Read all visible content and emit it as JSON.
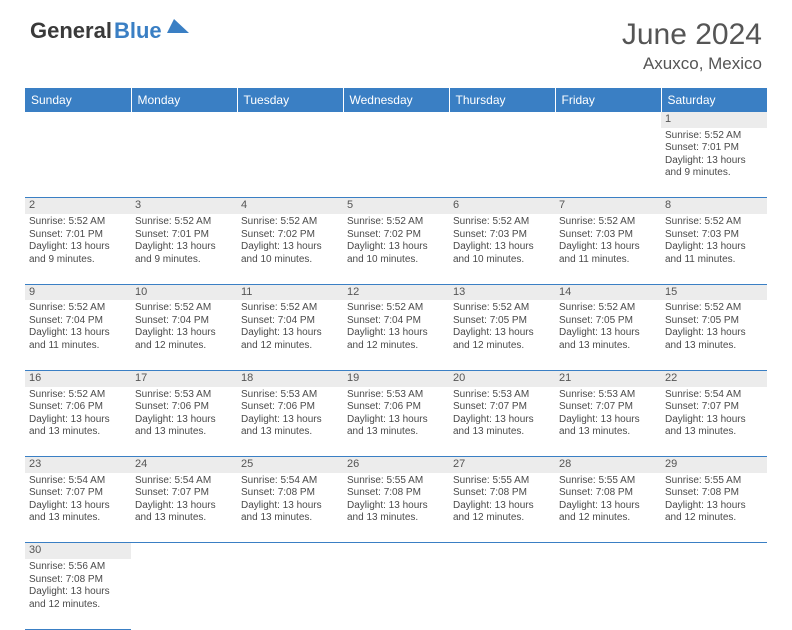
{
  "logo": {
    "text1": "General",
    "text2": "Blue",
    "arrow_color": "#3a7fc4"
  },
  "title": "June 2024",
  "location": "Axuxco, Mexico",
  "colors": {
    "header_bg": "#3a7fc4",
    "daynum_bg": "#ececec",
    "text": "#4a4a4a"
  },
  "day_headers": [
    "Sunday",
    "Monday",
    "Tuesday",
    "Wednesday",
    "Thursday",
    "Friday",
    "Saturday"
  ],
  "weeks": [
    [
      null,
      null,
      null,
      null,
      null,
      null,
      {
        "n": "1",
        "sr": "Sunrise: 5:52 AM",
        "ss": "Sunset: 7:01 PM",
        "dl": "Daylight: 13 hours and 9 minutes."
      }
    ],
    [
      {
        "n": "2",
        "sr": "Sunrise: 5:52 AM",
        "ss": "Sunset: 7:01 PM",
        "dl": "Daylight: 13 hours and 9 minutes."
      },
      {
        "n": "3",
        "sr": "Sunrise: 5:52 AM",
        "ss": "Sunset: 7:01 PM",
        "dl": "Daylight: 13 hours and 9 minutes."
      },
      {
        "n": "4",
        "sr": "Sunrise: 5:52 AM",
        "ss": "Sunset: 7:02 PM",
        "dl": "Daylight: 13 hours and 10 minutes."
      },
      {
        "n": "5",
        "sr": "Sunrise: 5:52 AM",
        "ss": "Sunset: 7:02 PM",
        "dl": "Daylight: 13 hours and 10 minutes."
      },
      {
        "n": "6",
        "sr": "Sunrise: 5:52 AM",
        "ss": "Sunset: 7:03 PM",
        "dl": "Daylight: 13 hours and 10 minutes."
      },
      {
        "n": "7",
        "sr": "Sunrise: 5:52 AM",
        "ss": "Sunset: 7:03 PM",
        "dl": "Daylight: 13 hours and 11 minutes."
      },
      {
        "n": "8",
        "sr": "Sunrise: 5:52 AM",
        "ss": "Sunset: 7:03 PM",
        "dl": "Daylight: 13 hours and 11 minutes."
      }
    ],
    [
      {
        "n": "9",
        "sr": "Sunrise: 5:52 AM",
        "ss": "Sunset: 7:04 PM",
        "dl": "Daylight: 13 hours and 11 minutes."
      },
      {
        "n": "10",
        "sr": "Sunrise: 5:52 AM",
        "ss": "Sunset: 7:04 PM",
        "dl": "Daylight: 13 hours and 12 minutes."
      },
      {
        "n": "11",
        "sr": "Sunrise: 5:52 AM",
        "ss": "Sunset: 7:04 PM",
        "dl": "Daylight: 13 hours and 12 minutes."
      },
      {
        "n": "12",
        "sr": "Sunrise: 5:52 AM",
        "ss": "Sunset: 7:04 PM",
        "dl": "Daylight: 13 hours and 12 minutes."
      },
      {
        "n": "13",
        "sr": "Sunrise: 5:52 AM",
        "ss": "Sunset: 7:05 PM",
        "dl": "Daylight: 13 hours and 12 minutes."
      },
      {
        "n": "14",
        "sr": "Sunrise: 5:52 AM",
        "ss": "Sunset: 7:05 PM",
        "dl": "Daylight: 13 hours and 13 minutes."
      },
      {
        "n": "15",
        "sr": "Sunrise: 5:52 AM",
        "ss": "Sunset: 7:05 PM",
        "dl": "Daylight: 13 hours and 13 minutes."
      }
    ],
    [
      {
        "n": "16",
        "sr": "Sunrise: 5:52 AM",
        "ss": "Sunset: 7:06 PM",
        "dl": "Daylight: 13 hours and 13 minutes."
      },
      {
        "n": "17",
        "sr": "Sunrise: 5:53 AM",
        "ss": "Sunset: 7:06 PM",
        "dl": "Daylight: 13 hours and 13 minutes."
      },
      {
        "n": "18",
        "sr": "Sunrise: 5:53 AM",
        "ss": "Sunset: 7:06 PM",
        "dl": "Daylight: 13 hours and 13 minutes."
      },
      {
        "n": "19",
        "sr": "Sunrise: 5:53 AM",
        "ss": "Sunset: 7:06 PM",
        "dl": "Daylight: 13 hours and 13 minutes."
      },
      {
        "n": "20",
        "sr": "Sunrise: 5:53 AM",
        "ss": "Sunset: 7:07 PM",
        "dl": "Daylight: 13 hours and 13 minutes."
      },
      {
        "n": "21",
        "sr": "Sunrise: 5:53 AM",
        "ss": "Sunset: 7:07 PM",
        "dl": "Daylight: 13 hours and 13 minutes."
      },
      {
        "n": "22",
        "sr": "Sunrise: 5:54 AM",
        "ss": "Sunset: 7:07 PM",
        "dl": "Daylight: 13 hours and 13 minutes."
      }
    ],
    [
      {
        "n": "23",
        "sr": "Sunrise: 5:54 AM",
        "ss": "Sunset: 7:07 PM",
        "dl": "Daylight: 13 hours and 13 minutes."
      },
      {
        "n": "24",
        "sr": "Sunrise: 5:54 AM",
        "ss": "Sunset: 7:07 PM",
        "dl": "Daylight: 13 hours and 13 minutes."
      },
      {
        "n": "25",
        "sr": "Sunrise: 5:54 AM",
        "ss": "Sunset: 7:08 PM",
        "dl": "Daylight: 13 hours and 13 minutes."
      },
      {
        "n": "26",
        "sr": "Sunrise: 5:55 AM",
        "ss": "Sunset: 7:08 PM",
        "dl": "Daylight: 13 hours and 13 minutes."
      },
      {
        "n": "27",
        "sr": "Sunrise: 5:55 AM",
        "ss": "Sunset: 7:08 PM",
        "dl": "Daylight: 13 hours and 12 minutes."
      },
      {
        "n": "28",
        "sr": "Sunrise: 5:55 AM",
        "ss": "Sunset: 7:08 PM",
        "dl": "Daylight: 13 hours and 12 minutes."
      },
      {
        "n": "29",
        "sr": "Sunrise: 5:55 AM",
        "ss": "Sunset: 7:08 PM",
        "dl": "Daylight: 13 hours and 12 minutes."
      }
    ],
    [
      {
        "n": "30",
        "sr": "Sunrise: 5:56 AM",
        "ss": "Sunset: 7:08 PM",
        "dl": "Daylight: 13 hours and 12 minutes."
      },
      null,
      null,
      null,
      null,
      null,
      null
    ]
  ]
}
